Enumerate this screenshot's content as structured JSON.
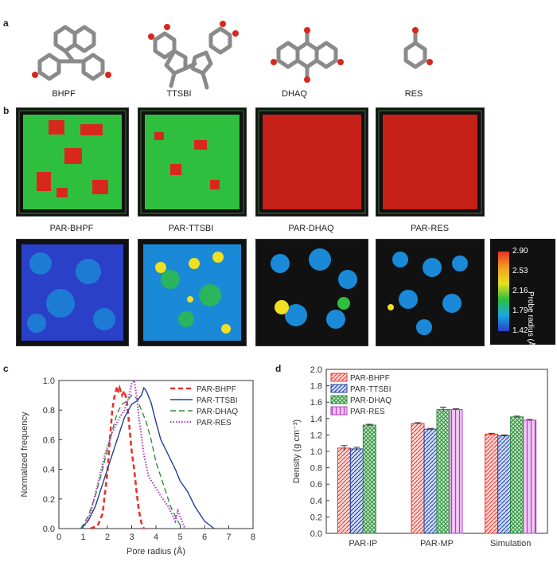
{
  "panels": {
    "a": "a",
    "b": "b",
    "c": "c",
    "d": "d"
  },
  "molecules": [
    "BHPF",
    "TTSBI",
    "DHAQ",
    "RES"
  ],
  "boxes": [
    "PAR-BHPF",
    "PAR-TTSBI",
    "PAR-DHAQ",
    "PAR-RES"
  ],
  "colorbar": {
    "label": "Probe radius (Å)",
    "ticks": [
      "2.90",
      "2.53",
      "2.16",
      "1.79",
      "1.42"
    ]
  },
  "colors": {
    "bhpf": "#e8332a",
    "ttsbi": "#1f3f9a",
    "dhaq": "#2e8b3e",
    "res": "#b040c0",
    "green_box": "#2fbf3f",
    "red_box": "#d8281e"
  },
  "chart_data": [
    {
      "id": "c",
      "type": "line",
      "xlabel": "Pore radius (Å)",
      "ylabel": "Normalized frequency",
      "xlim": [
        0,
        8
      ],
      "ylim": [
        0,
        1.0
      ],
      "xticks": [
        "0",
        "1",
        "2",
        "3",
        "4",
        "5",
        "6",
        "7",
        "8"
      ],
      "yticks": [
        "0.0",
        "0.2",
        "0.4",
        "0.6",
        "0.8",
        "1.0"
      ],
      "legend_position": "top-right",
      "series": [
        {
          "name": "PAR-BHPF",
          "style": "dashed-thick",
          "x": [
            1.3,
            1.6,
            1.8,
            2.0,
            2.1,
            2.2,
            2.3,
            2.4,
            2.45,
            2.5,
            2.6,
            2.7,
            2.8,
            2.9,
            3.0,
            3.1,
            3.2,
            3.3,
            3.4,
            3.5
          ],
          "y": [
            0.0,
            0.02,
            0.1,
            0.38,
            0.6,
            0.8,
            0.9,
            0.96,
            0.92,
            0.95,
            0.9,
            0.93,
            0.86,
            0.7,
            0.52,
            0.4,
            0.25,
            0.12,
            0.04,
            0.0
          ]
        },
        {
          "name": "PAR-TTSBI",
          "style": "solid",
          "x": [
            0.9,
            1.2,
            1.5,
            1.8,
            2.1,
            2.4,
            2.7,
            3.0,
            3.2,
            3.4,
            3.5,
            3.6,
            3.8,
            4.0,
            4.2,
            4.5,
            4.8,
            5.0,
            5.3,
            5.6,
            6.0,
            6.4
          ],
          "y": [
            0.0,
            0.05,
            0.15,
            0.3,
            0.45,
            0.6,
            0.75,
            0.84,
            0.86,
            0.9,
            0.95,
            0.93,
            0.85,
            0.72,
            0.6,
            0.5,
            0.4,
            0.32,
            0.25,
            0.15,
            0.05,
            0.0
          ]
        },
        {
          "name": "PAR-DHAQ",
          "style": "dashed",
          "x": [
            0.9,
            1.2,
            1.5,
            1.8,
            2.1,
            2.4,
            2.6,
            2.8,
            3.0,
            3.2,
            3.4,
            3.6,
            3.8,
            4.0,
            4.3,
            4.6,
            4.9,
            5.1
          ],
          "y": [
            0.0,
            0.08,
            0.22,
            0.4,
            0.6,
            0.78,
            0.84,
            0.86,
            0.9,
            0.88,
            0.8,
            0.72,
            0.6,
            0.45,
            0.3,
            0.15,
            0.05,
            0.0
          ]
        },
        {
          "name": "PAR-RES",
          "style": "dotted",
          "x": [
            1.0,
            1.3,
            1.6,
            1.9,
            2.2,
            2.5,
            2.7,
            2.9,
            3.0,
            3.1,
            3.2,
            3.3,
            3.5,
            3.7,
            3.9,
            4.2,
            4.5,
            4.8,
            4.9,
            5.0,
            5.2
          ],
          "y": [
            0.0,
            0.1,
            0.3,
            0.5,
            0.65,
            0.75,
            0.8,
            0.9,
            0.98,
            1.0,
            0.9,
            0.75,
            0.5,
            0.35,
            0.3,
            0.22,
            0.15,
            0.05,
            0.12,
            0.08,
            0.0
          ]
        }
      ]
    },
    {
      "id": "d",
      "type": "bar",
      "ylabel": "Density (g cm⁻³)",
      "ylim": [
        0,
        2.0
      ],
      "yticks": [
        "0.0",
        "0.2",
        "0.4",
        "0.6",
        "0.8",
        "1.0",
        "1.2",
        "1.4",
        "1.6",
        "1.8",
        "2.0"
      ],
      "categories": [
        "PAR-IP",
        "PAR-MP",
        "Simulation"
      ],
      "legend_position": "top-left",
      "series": [
        {
          "name": "PAR-BHPF",
          "values": [
            1.04,
            1.34,
            1.21
          ],
          "errors": [
            0.03,
            0.01,
            0.01
          ]
        },
        {
          "name": "PAR-TTSBI",
          "values": [
            1.03,
            1.27,
            1.19
          ],
          "errors": [
            0.02,
            0.01,
            0.01
          ]
        },
        {
          "name": "PAR-DHAQ",
          "values": [
            1.32,
            1.51,
            1.42
          ],
          "errors": [
            0.01,
            0.03,
            0.01
          ]
        },
        {
          "name": "PAR-RES",
          "values": [
            null,
            1.51,
            1.38
          ],
          "errors": [
            null,
            0.01,
            0.01
          ]
        }
      ]
    }
  ]
}
